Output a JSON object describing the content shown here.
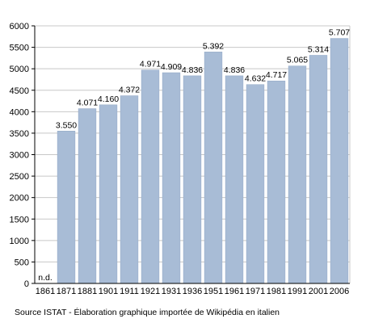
{
  "chart_data": {
    "type": "bar",
    "categories": [
      "1861",
      "1871",
      "1881",
      "1901",
      "1911",
      "1921",
      "1931",
      "1936",
      "1951",
      "1961",
      "1971",
      "1981",
      "1991",
      "2001",
      "2006"
    ],
    "values": [
      null,
      3550,
      4071,
      4160,
      4372,
      4971,
      4909,
      4836,
      5392,
      4836,
      4632,
      4717,
      5065,
      5314,
      5707
    ],
    "value_labels": [
      "n.d.",
      "3.550",
      "4.071",
      "4.160",
      "4.372",
      "4.971",
      "4.909",
      "4.836",
      "5.392",
      "4.836",
      "4.632",
      "4.717",
      "5.065",
      "5.314",
      "5.707"
    ],
    "ylim": [
      0,
      6000
    ],
    "yticks": [
      0,
      500,
      1000,
      1500,
      2000,
      2500,
      3000,
      3500,
      4000,
      4500,
      5000,
      5500,
      6000
    ],
    "grid": true,
    "colors": {
      "bar": "#a8bcd6",
      "bar_edge": "#8fa6c4",
      "grid": "#c8c8c8",
      "axis": "#000000"
    }
  },
  "source": "Source ISTAT - Élaboration graphique importée de Wikipédia en italien"
}
